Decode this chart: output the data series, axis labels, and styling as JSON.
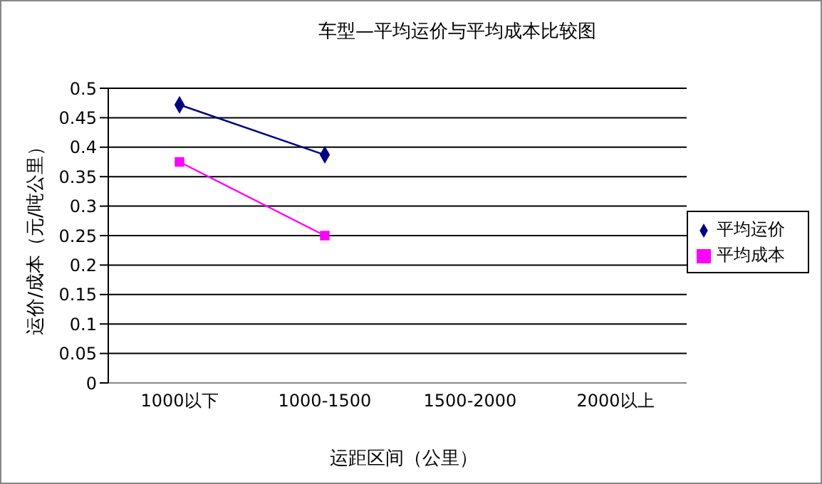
{
  "chart_data": {
    "type": "line",
    "title": "车型—平均运价与平均成本比较图",
    "xlabel": "运距区间（公里）",
    "ylabel": "运价/成本（元/吨公里）",
    "categories": [
      "1000以下",
      "1000-1500",
      "1500-2000",
      "2000以上"
    ],
    "series": [
      {
        "name": "平均运价",
        "color": "#000080",
        "marker": "diamond",
        "values": [
          0.472,
          0.387,
          null,
          null
        ]
      },
      {
        "name": "平均成本",
        "color": "#ff00ff",
        "marker": "square",
        "values": [
          0.375,
          0.25,
          null,
          null
        ]
      }
    ],
    "ylim": [
      0,
      0.5
    ],
    "yticks": [
      0,
      0.05,
      0.1,
      0.15,
      0.2,
      0.25,
      0.3,
      0.35,
      0.4,
      0.45,
      0.5
    ],
    "grid": "y",
    "legend": "right",
    "line_style": "solid"
  }
}
